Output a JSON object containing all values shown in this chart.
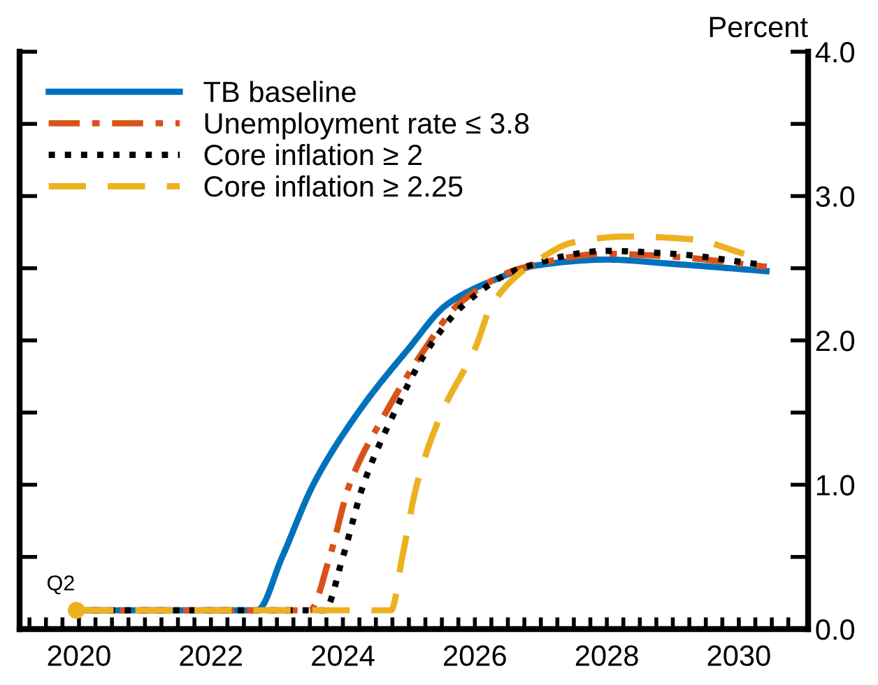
{
  "chart_data": {
    "type": "line",
    "ylabel": "Percent",
    "xlim": [
      2019.6,
      2031.55
    ],
    "ylim": [
      0,
      4
    ],
    "xticks": [
      {
        "value": 2019.75,
        "label": null
      },
      {
        "value": 2020.0,
        "label": null
      },
      {
        "value": 2020.25,
        "label": null
      },
      {
        "value": 2020.5,
        "label": "2020"
      },
      {
        "value": 2020.75,
        "label": null
      },
      {
        "value": 2021.0,
        "label": null
      },
      {
        "value": 2021.25,
        "label": null
      },
      {
        "value": 2021.5,
        "label": null
      },
      {
        "value": 2021.75,
        "label": null
      },
      {
        "value": 2022.0,
        "label": null
      },
      {
        "value": 2022.25,
        "label": null
      },
      {
        "value": 2022.5,
        "label": "2022"
      },
      {
        "value": 2022.75,
        "label": null
      },
      {
        "value": 2023.0,
        "label": null
      },
      {
        "value": 2023.25,
        "label": null
      },
      {
        "value": 2023.5,
        "label": null
      },
      {
        "value": 2023.75,
        "label": null
      },
      {
        "value": 2024.0,
        "label": null
      },
      {
        "value": 2024.25,
        "label": null
      },
      {
        "value": 2024.5,
        "label": "2024"
      },
      {
        "value": 2024.75,
        "label": null
      },
      {
        "value": 2025.0,
        "label": null
      },
      {
        "value": 2025.25,
        "label": null
      },
      {
        "value": 2025.5,
        "label": null
      },
      {
        "value": 2025.75,
        "label": null
      },
      {
        "value": 2026.0,
        "label": null
      },
      {
        "value": 2026.25,
        "label": null
      },
      {
        "value": 2026.5,
        "label": "2026"
      },
      {
        "value": 2026.75,
        "label": null
      },
      {
        "value": 2027.0,
        "label": null
      },
      {
        "value": 2027.25,
        "label": null
      },
      {
        "value": 2027.5,
        "label": null
      },
      {
        "value": 2027.75,
        "label": null
      },
      {
        "value": 2028.0,
        "label": null
      },
      {
        "value": 2028.25,
        "label": null
      },
      {
        "value": 2028.5,
        "label": "2028"
      },
      {
        "value": 2028.75,
        "label": null
      },
      {
        "value": 2029.0,
        "label": null
      },
      {
        "value": 2029.25,
        "label": null
      },
      {
        "value": 2029.5,
        "label": null
      },
      {
        "value": 2029.75,
        "label": null
      },
      {
        "value": 2030.0,
        "label": null
      },
      {
        "value": 2030.25,
        "label": null
      },
      {
        "value": 2030.5,
        "label": "2030"
      },
      {
        "value": 2030.75,
        "label": null
      },
      {
        "value": 2031.0,
        "label": null
      },
      {
        "value": 2031.25,
        "label": null
      }
    ],
    "yticks": [
      {
        "value": 0,
        "label": "0.0"
      },
      {
        "value": 0.5,
        "label": null
      },
      {
        "value": 1,
        "label": "1.0"
      },
      {
        "value": 1.5,
        "label": null
      },
      {
        "value": 2,
        "label": "2.0"
      },
      {
        "value": 2.5,
        "label": null
      },
      {
        "value": 3,
        "label": "3.0"
      },
      {
        "value": 3.5,
        "label": null
      },
      {
        "value": 4,
        "label": "4.0"
      }
    ],
    "grid": false,
    "legend": "top left",
    "annotations": [
      {
        "text": "Q2",
        "x": 2020.46,
        "y": 0.13
      }
    ],
    "series": [
      {
        "name": "TB baseline",
        "color": "#0072bd",
        "line_style": "solid",
        "x": [
          2020.46,
          2023.2,
          2023.58,
          2024.05,
          2024.73,
          2025.49,
          2026.08,
          2026.8,
          2027.44,
          2028.5,
          2029.5,
          2030.92
        ],
        "values": [
          0.13,
          0.13,
          0.5,
          1.0,
          1.5,
          1.94,
          2.25,
          2.42,
          2.52,
          2.56,
          2.53,
          2.48
        ]
      },
      {
        "name": "Unemployment rate ≤ 3.8",
        "color": "#d95319",
        "line_style": "dashdot",
        "x": [
          2020.46,
          2024.0,
          2024.3,
          2024.6,
          2025.15,
          2025.74,
          2026.25,
          2027.2,
          2028.5,
          2029.5,
          2030.92
        ],
        "values": [
          0.13,
          0.13,
          0.5,
          1.0,
          1.5,
          1.94,
          2.25,
          2.5,
          2.6,
          2.58,
          2.51
        ]
      },
      {
        "name": "Core inflation ≥ 2",
        "color": "#000000",
        "line_style": "dotted",
        "x": [
          2020.46,
          2024.22,
          2024.5,
          2024.81,
          2025.28,
          2025.79,
          2026.34,
          2027.2,
          2028.5,
          2029.5,
          2030.92
        ],
        "values": [
          0.13,
          0.13,
          0.5,
          1.0,
          1.5,
          1.94,
          2.25,
          2.5,
          2.62,
          2.6,
          2.52
        ]
      },
      {
        "name": "Core inflation ≥ 2.25",
        "color": "#edb120",
        "line_style": "dashed",
        "x": [
          2020.46,
          2025.23,
          2025.4,
          2025.62,
          2026.0,
          2026.5,
          2026.76,
          2027.44,
          2028.0,
          2028.8,
          2029.8,
          2030.58
        ],
        "values": [
          0.13,
          0.13,
          0.5,
          1.0,
          1.5,
          1.94,
          2.25,
          2.55,
          2.68,
          2.72,
          2.7,
          2.6
        ]
      },
      {
        "type": "scatter",
        "color": "#edb120",
        "marker": "circle",
        "x": [
          2020.46
        ],
        "values": [
          0.13
        ]
      }
    ]
  }
}
